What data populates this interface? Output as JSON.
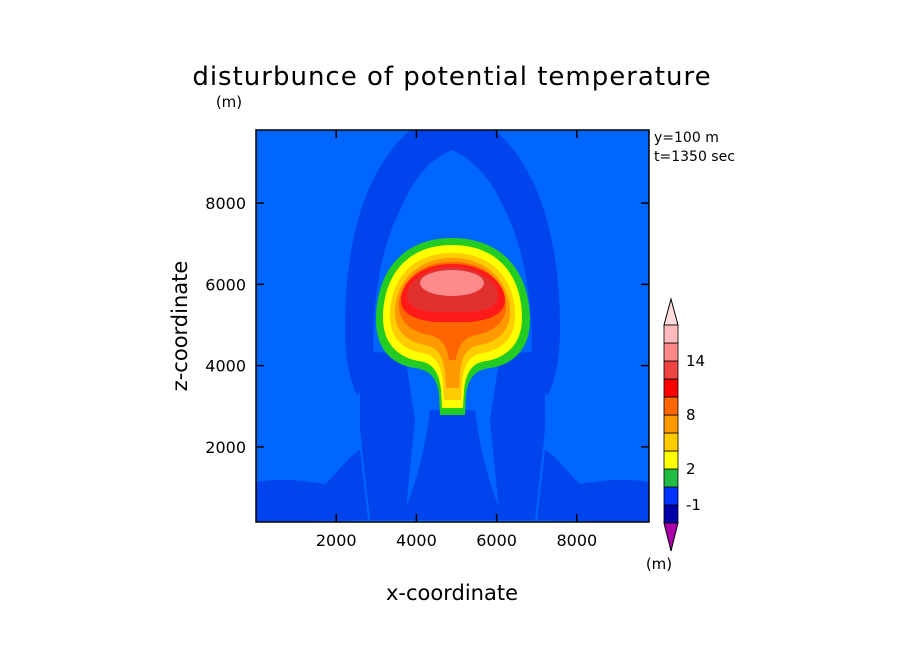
{
  "chart_data": {
    "type": "heatmap",
    "title": "disturbunce of potential temperature",
    "xlabel": "x-coordinate",
    "ylabel": "z-coordinate",
    "y_unit": "(m)",
    "colorbar_unit": "(m)",
    "info": [
      "y=100 m",
      "t=1350 sec"
    ],
    "xlim": [
      0,
      9800
    ],
    "ylim": [
      150,
      9800
    ],
    "xticks": [
      2000,
      4000,
      6000,
      8000
    ],
    "yticks": [
      2000,
      4000,
      6000,
      8000
    ],
    "colorbar": {
      "levels": [
        -2,
        -1,
        0,
        2,
        4,
        6,
        8,
        10,
        12,
        14,
        16
      ],
      "labels": [
        -1,
        2,
        8,
        14
      ],
      "label_text": [
        "-1",
        "2",
        "8",
        "14"
      ],
      "colors": [
        "#0000aa",
        "#0033ff",
        "#22bb44",
        "#ffff00",
        "#ffcc00",
        "#ff9900",
        "#ff6600",
        "#ff0000",
        "#ee4444",
        "#ff8888",
        "#ffbbbb"
      ],
      "under_color": "#aa00aa",
      "over_color": "#ffdddd"
    },
    "background_level_color": "#0066ff",
    "features": [
      {
        "name": "thermal-bubble",
        "center_x": 5000,
        "center_z": 5800,
        "max_value": 16
      }
    ]
  }
}
